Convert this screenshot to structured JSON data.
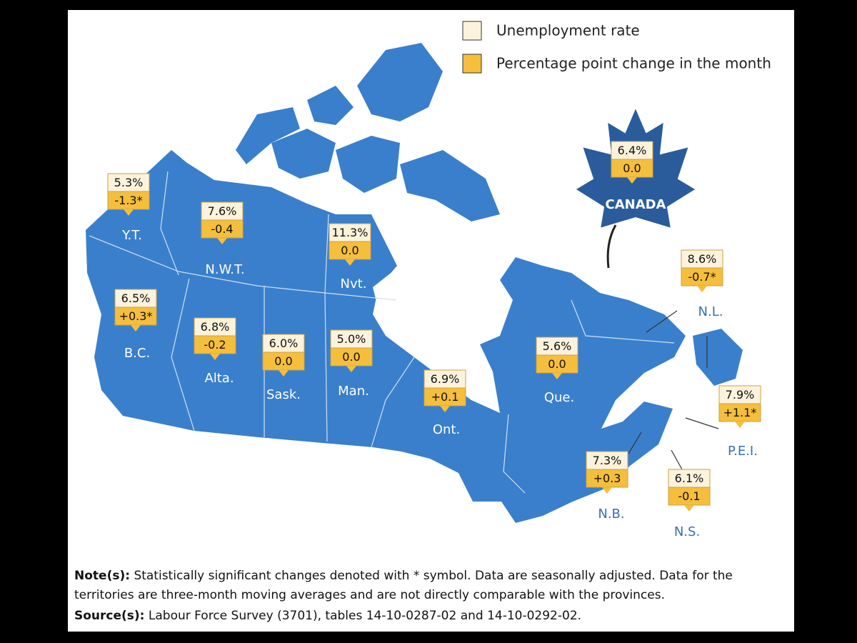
{
  "legend": [
    {
      "label": "Unemployment rate"
    },
    {
      "label": "Percentage point change in the month"
    }
  ],
  "national": {
    "name": "CANADA",
    "rate": "6.4%",
    "change": "0.0"
  },
  "regions": [
    {
      "name": "Y.T.",
      "rate": "5.3%",
      "change": "-1.3*"
    },
    {
      "name": "N.W.T.",
      "rate": "7.6%",
      "change": "-0.4"
    },
    {
      "name": "Nvt.",
      "rate": "11.3%",
      "change": "0.0"
    },
    {
      "name": "B.C.",
      "rate": "6.5%",
      "change": "+0.3*"
    },
    {
      "name": "Alta.",
      "rate": "6.8%",
      "change": "-0.2"
    },
    {
      "name": "Sask.",
      "rate": "6.0%",
      "change": "0.0"
    },
    {
      "name": "Man.",
      "rate": "5.0%",
      "change": "0.0"
    },
    {
      "name": "Ont.",
      "rate": "6.9%",
      "change": "+0.1"
    },
    {
      "name": "Que.",
      "rate": "5.6%",
      "change": "0.0"
    },
    {
      "name": "N.L.",
      "rate": "8.6%",
      "change": "-0.7*"
    },
    {
      "name": "P.E.I.",
      "rate": "7.9%",
      "change": "+1.1*"
    },
    {
      "name": "N.B.",
      "rate": "7.3%",
      "change": "+0.3"
    },
    {
      "name": "N.S.",
      "rate": "6.1%",
      "change": "-0.1"
    }
  ],
  "notes": {
    "note_label": "Note(s):",
    "note_text": "Statistically significant changes denoted with * symbol. Data are seasonally adjusted. Data for the",
    "note_text_2": "territories are three-month moving averages and are not directly comparable with the provinces.",
    "source_label": "Source(s):",
    "source_text": "Labour Force Survey (3701), tables 14-10-0287-02 and 14-10-0292-02."
  }
}
